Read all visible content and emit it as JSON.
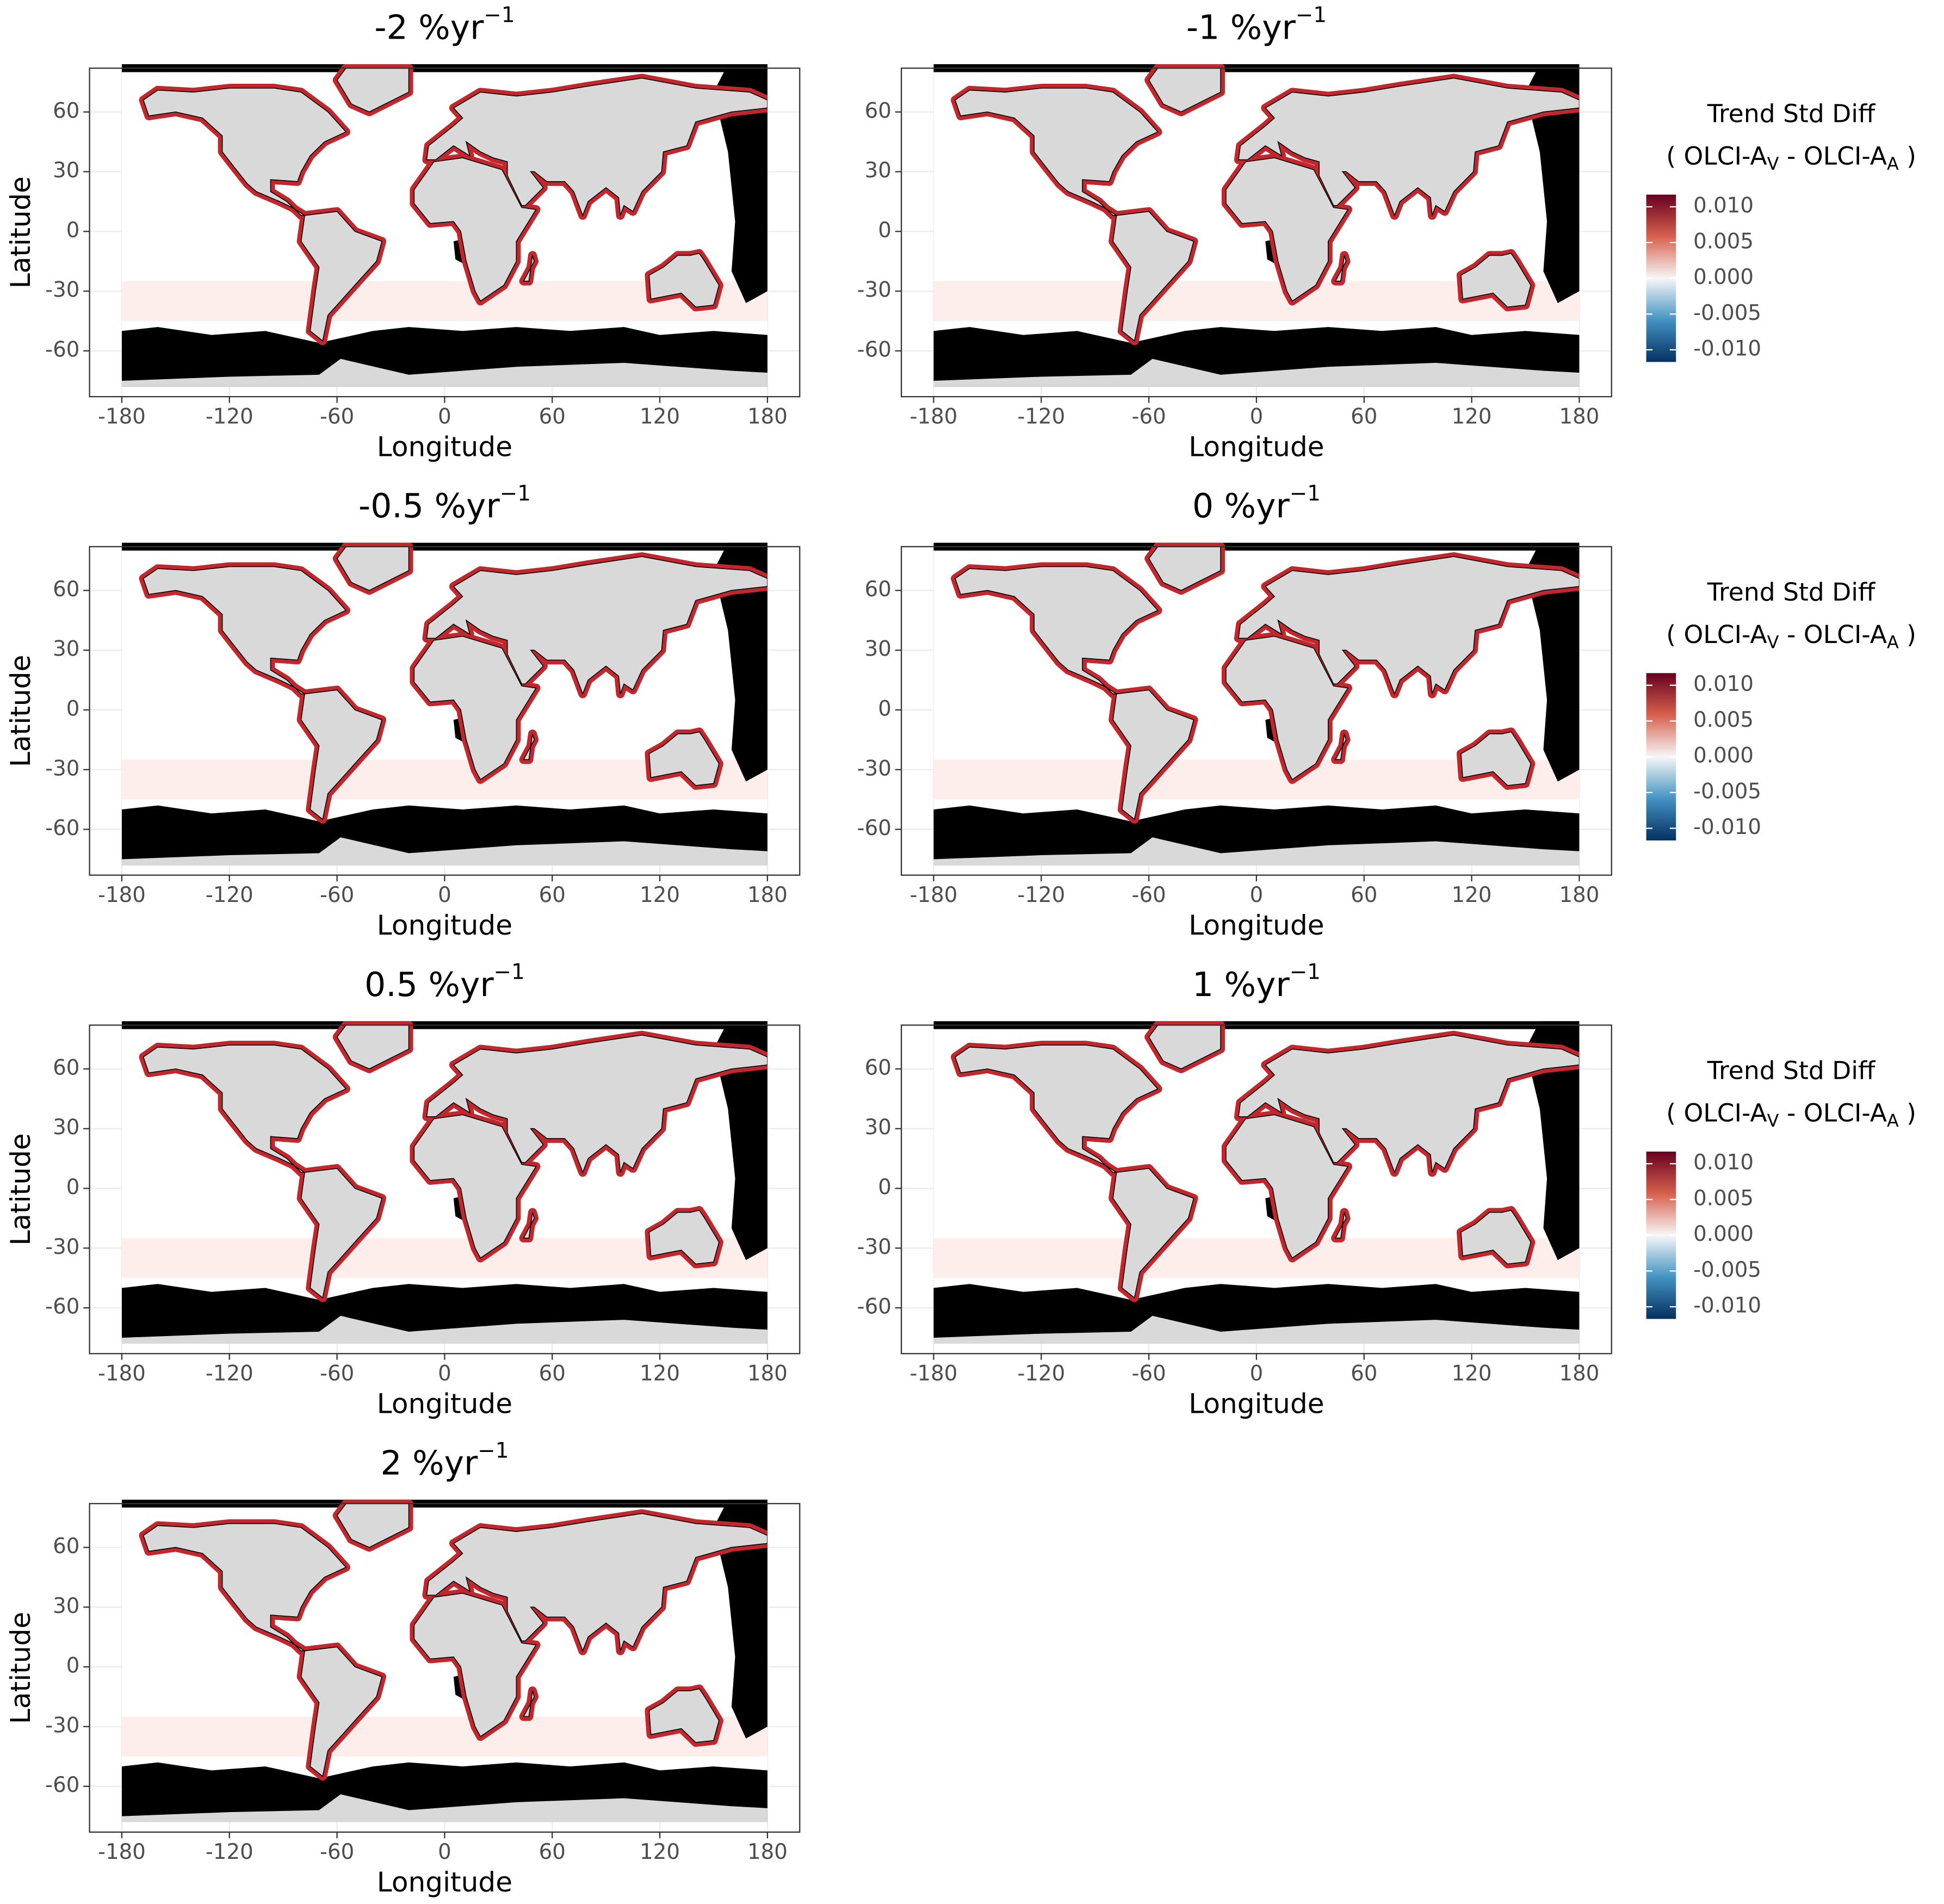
{
  "chart_data": [
    {
      "type": "map",
      "title": [
        "-2 %yr",
        "−1"
      ],
      "xlabel": "Longitude",
      "ylabel": "Latitude",
      "xlim": [
        -198,
        198
      ],
      "ylim": [
        -83,
        82
      ],
      "xticks": [
        -180,
        -120,
        -60,
        0,
        60,
        120,
        180
      ],
      "yticks": [
        60,
        30,
        0,
        -30,
        -60
      ]
    },
    {
      "type": "map",
      "title": [
        "-1 %yr",
        "−1"
      ],
      "xlabel": "Longitude",
      "ylabel": "Latitude",
      "xlim": [
        -198,
        198
      ],
      "ylim": [
        -83,
        82
      ],
      "xticks": [
        -180,
        -120,
        -60,
        0,
        60,
        120,
        180
      ],
      "yticks": [
        60,
        30,
        0,
        -30,
        -60
      ],
      "legend": {
        "title": "Trend Std Diff",
        "subtitle": [
          "( OLCI-A",
          "V",
          " - OLCI-A",
          "A",
          " )"
        ],
        "lim": [
          -0.0117,
          0.0117
        ],
        "colors": [
          "#67001f",
          "#d6604d",
          "#f7f7f7",
          "#4393c3",
          "#053061"
        ],
        "ticks": [
          {
            "value": 0.01,
            "label": "0.010"
          },
          {
            "value": 0.005,
            "label": "0.005"
          },
          {
            "value": 0,
            "label": "0.000"
          },
          {
            "value": -0.005,
            "label": "-0.005"
          },
          {
            "value": -0.01,
            "label": "-0.010"
          }
        ]
      }
    },
    {
      "type": "map",
      "title": [
        "-0.5 %yr",
        "−1"
      ],
      "xlabel": "Longitude",
      "ylabel": "Latitude",
      "xlim": [
        -198,
        198
      ],
      "ylim": [
        -83,
        82
      ],
      "xticks": [
        -180,
        -120,
        -60,
        0,
        60,
        120,
        180
      ],
      "yticks": [
        60,
        30,
        0,
        -30,
        -60
      ]
    },
    {
      "type": "map",
      "title": [
        "0 %yr",
        "−1"
      ],
      "xlabel": "Longitude",
      "ylabel": "Latitude",
      "xlim": [
        -198,
        198
      ],
      "ylim": [
        -83,
        82
      ],
      "xticks": [
        -180,
        -120,
        -60,
        0,
        60,
        120,
        180
      ],
      "yticks": [
        60,
        30,
        0,
        -30,
        -60
      ],
      "legend": {
        "title": "Trend Std Diff",
        "subtitle": [
          "( OLCI-A",
          "V",
          " - OLCI-A",
          "A",
          " )"
        ],
        "lim": [
          -0.0117,
          0.0117
        ],
        "colors": [
          "#67001f",
          "#d6604d",
          "#f7f7f7",
          "#4393c3",
          "#053061"
        ],
        "ticks": [
          {
            "value": 0.01,
            "label": "0.010"
          },
          {
            "value": 0.005,
            "label": "0.005"
          },
          {
            "value": 0,
            "label": "0.000"
          },
          {
            "value": -0.005,
            "label": "-0.005"
          },
          {
            "value": -0.01,
            "label": "-0.010"
          }
        ]
      }
    },
    {
      "type": "map",
      "title": [
        "0.5 %yr",
        "−1"
      ],
      "xlabel": "Longitude",
      "ylabel": "Latitude",
      "xlim": [
        -198,
        198
      ],
      "ylim": [
        -83,
        82
      ],
      "xticks": [
        -180,
        -120,
        -60,
        0,
        60,
        120,
        180
      ],
      "yticks": [
        60,
        30,
        0,
        -30,
        -60
      ]
    },
    {
      "type": "map",
      "title": [
        "1 %yr",
        "−1"
      ],
      "xlabel": "Longitude",
      "ylabel": "Latitude",
      "xlim": [
        -198,
        198
      ],
      "ylim": [
        -83,
        82
      ],
      "xticks": [
        -180,
        -120,
        -60,
        0,
        60,
        120,
        180
      ],
      "yticks": [
        60,
        30,
        0,
        -30,
        -60
      ],
      "legend": {
        "title": "Trend Std Diff",
        "subtitle": [
          "( OLCI-A",
          "V",
          " - OLCI-A",
          "A",
          " )"
        ],
        "lim": [
          -0.0117,
          0.0117
        ],
        "colors": [
          "#67001f",
          "#d6604d",
          "#f7f7f7",
          "#4393c3",
          "#053061"
        ],
        "ticks": [
          {
            "value": 0.01,
            "label": "0.010"
          },
          {
            "value": 0.005,
            "label": "0.005"
          },
          {
            "value": 0,
            "label": "0.000"
          },
          {
            "value": -0.005,
            "label": "-0.005"
          },
          {
            "value": -0.01,
            "label": "-0.010"
          }
        ]
      }
    },
    {
      "type": "map",
      "title": [
        "2 %yr",
        "−1"
      ],
      "xlabel": "Longitude",
      "ylabel": "Latitude",
      "xlim": [
        -198,
        198
      ],
      "ylim": [
        -83,
        82
      ],
      "xticks": [
        -180,
        -120,
        -60,
        0,
        60,
        120,
        180
      ],
      "yticks": [
        60,
        30,
        0,
        -30,
        -60
      ]
    }
  ]
}
